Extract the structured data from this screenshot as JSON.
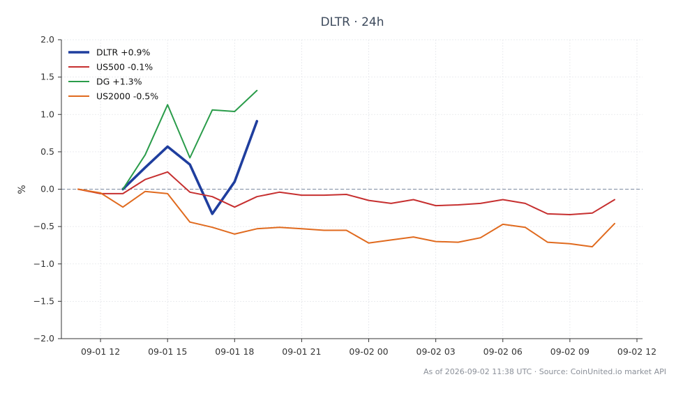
{
  "chart_data": {
    "type": "line",
    "title": "DLTR · 24h",
    "xlabel": "",
    "ylabel": "%",
    "ylim": [
      -2.0,
      2.0
    ],
    "xlim": [
      "2026-09-01 10:15",
      "2026-09-02 12:15"
    ],
    "yticks": [
      "2.0",
      "1.5",
      "1.0",
      "0.5",
      "0.0",
      "−0.5",
      "−1.0",
      "−1.5",
      "−2.0"
    ],
    "xticks": [
      {
        "t": "2026-09-01 12:00",
        "label": "09-01 12"
      },
      {
        "t": "2026-09-01 15:00",
        "label": "09-01 15"
      },
      {
        "t": "2026-09-01 18:00",
        "label": "09-01 18"
      },
      {
        "t": "2026-09-01 21:00",
        "label": "09-01 21"
      },
      {
        "t": "2026-09-02 00:00",
        "label": "09-02 00"
      },
      {
        "t": "2026-09-02 03:00",
        "label": "09-02 03"
      },
      {
        "t": "2026-09-02 06:00",
        "label": "09-02 06"
      },
      {
        "t": "2026-09-02 09:00",
        "label": "09-02 09"
      },
      {
        "t": "2026-09-02 12:00",
        "label": "09-02 12"
      }
    ],
    "grid": true,
    "zero_line": true,
    "legend_position": "top-left",
    "series": [
      {
        "name": "DLTR +0.9%",
        "color": "#1f3e9e",
        "width": "bold",
        "x": [
          "2026-09-01 13:00",
          "2026-09-01 14:00",
          "2026-09-01 15:00",
          "2026-09-01 16:00",
          "2026-09-01 17:00",
          "2026-09-01 18:00",
          "2026-09-01 19:00"
        ],
        "y": [
          0.0,
          0.29,
          0.57,
          0.33,
          -0.33,
          0.1,
          0.91
        ]
      },
      {
        "name": "US500 -0.1%",
        "color": "#c62f2f",
        "x": [
          "2026-09-01 11:00",
          "2026-09-01 12:00",
          "2026-09-01 13:00",
          "2026-09-01 14:00",
          "2026-09-01 15:00",
          "2026-09-01 16:00",
          "2026-09-01 17:00",
          "2026-09-01 18:00",
          "2026-09-01 19:00",
          "2026-09-01 20:00",
          "2026-09-01 21:00",
          "2026-09-01 22:00",
          "2026-09-01 23:00",
          "2026-09-02 00:00",
          "2026-09-02 01:00",
          "2026-09-02 02:00",
          "2026-09-02 03:00",
          "2026-09-02 04:00",
          "2026-09-02 05:00",
          "2026-09-02 06:00",
          "2026-09-02 07:00",
          "2026-09-02 08:00",
          "2026-09-02 09:00",
          "2026-09-02 10:00",
          "2026-09-02 11:00"
        ],
        "y": [
          0.0,
          -0.06,
          -0.06,
          0.13,
          0.23,
          -0.04,
          -0.1,
          -0.24,
          -0.1,
          -0.04,
          -0.08,
          -0.08,
          -0.07,
          -0.15,
          -0.19,
          -0.14,
          -0.22,
          -0.21,
          -0.19,
          -0.14,
          -0.19,
          -0.33,
          -0.34,
          -0.32,
          -0.14
        ]
      },
      {
        "name": "DG +1.3%",
        "color": "#2a9c4a",
        "x": [
          "2026-09-01 13:00",
          "2026-09-01 14:00",
          "2026-09-01 15:00",
          "2026-09-01 16:00",
          "2026-09-01 17:00",
          "2026-09-01 18:00",
          "2026-09-01 19:00"
        ],
        "y": [
          0.0,
          0.46,
          1.13,
          0.42,
          1.06,
          1.04,
          1.32
        ]
      },
      {
        "name": "US2000 -0.5%",
        "color": "#e06a1e",
        "x": [
          "2026-09-01 11:00",
          "2026-09-01 12:00",
          "2026-09-01 13:00",
          "2026-09-01 14:00",
          "2026-09-01 15:00",
          "2026-09-01 16:00",
          "2026-09-01 17:00",
          "2026-09-01 18:00",
          "2026-09-01 19:00",
          "2026-09-01 20:00",
          "2026-09-01 21:00",
          "2026-09-01 22:00",
          "2026-09-01 23:00",
          "2026-09-02 00:00",
          "2026-09-02 01:00",
          "2026-09-02 02:00",
          "2026-09-02 03:00",
          "2026-09-02 04:00",
          "2026-09-02 05:00",
          "2026-09-02 06:00",
          "2026-09-02 07:00",
          "2026-09-02 08:00",
          "2026-09-02 09:00",
          "2026-09-02 10:00",
          "2026-09-02 11:00"
        ],
        "y": [
          0.0,
          -0.05,
          -0.24,
          -0.03,
          -0.06,
          -0.44,
          -0.51,
          -0.6,
          -0.53,
          -0.51,
          -0.53,
          -0.55,
          -0.55,
          -0.72,
          -0.68,
          -0.64,
          -0.7,
          -0.71,
          -0.65,
          -0.47,
          -0.51,
          -0.71,
          -0.73,
          -0.77,
          -0.46
        ]
      }
    ],
    "footer": "As of 2026-09-02 11:38 UTC · Source: CoinUnited.io market API"
  }
}
